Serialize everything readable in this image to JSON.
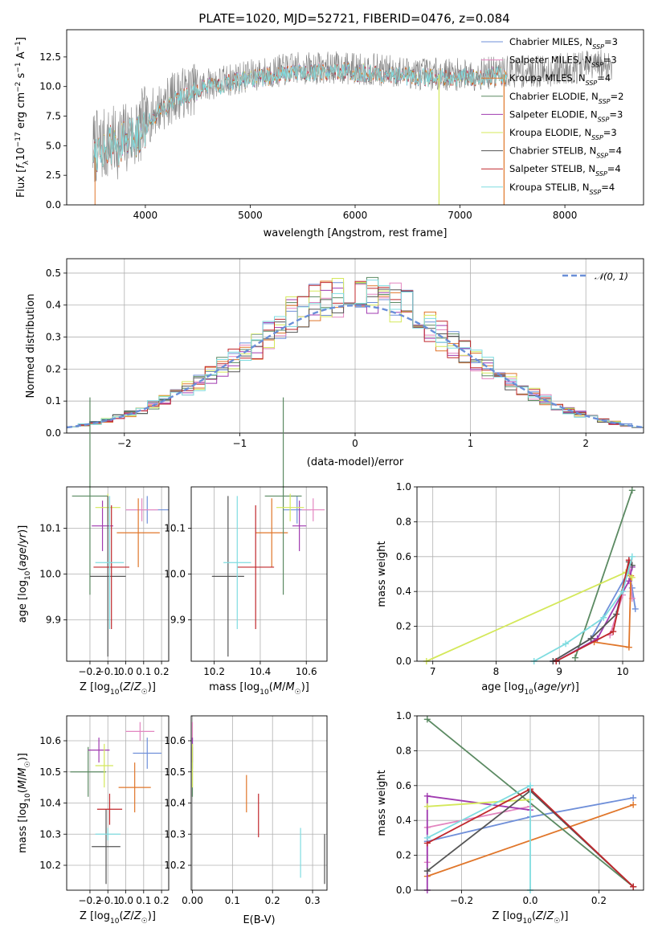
{
  "figure": {
    "title": "PLATE=1020, MJD=52721, FIBERID=0476, z=0.084"
  },
  "colors": {
    "data_spectrum": "#808080",
    "normal_curve": "#6a8fd8",
    "grid": "#b0b0b0"
  },
  "models": [
    {
      "name": "Chabrier MILES",
      "nssp": "3",
      "color": "#6f8fd9"
    },
    {
      "name": "Salpeter MILES",
      "nssp": "3",
      "color": "#e386c0"
    },
    {
      "name": "Kroupa MILES",
      "nssp": "4",
      "color": "#e0762a"
    },
    {
      "name": "Chabrier ELODIE",
      "nssp": "2",
      "color": "#5b8a62"
    },
    {
      "name": "Salpeter ELODIE",
      "nssp": "3",
      "color": "#a03bb0"
    },
    {
      "name": "Kroupa ELODIE",
      "nssp": "3",
      "color": "#d4e85a"
    },
    {
      "name": "Chabrier STELIB",
      "nssp": "4",
      "color": "#555555"
    },
    {
      "name": "Salpeter STELIB",
      "nssp": "4",
      "color": "#c0282d"
    },
    {
      "name": "Kroupa STELIB",
      "nssp": "4",
      "color": "#7fdce0"
    }
  ],
  "chart_data": [
    {
      "id": "spectrum",
      "type": "line",
      "title": "PLATE=1020, MJD=52721, FIBERID=0476, z=0.084",
      "xlabel": "wavelength [Angstrom, rest frame]",
      "ylabel": "Flux [f_λ 10^-17 erg cm^-2 s^-1 A^-1]",
      "xlim": [
        3250,
        8750
      ],
      "ylim": [
        0,
        14.8
      ],
      "xticks": [
        4000,
        5000,
        6000,
        7000,
        8000
      ],
      "yticks": [
        0.0,
        2.5,
        5.0,
        7.5,
        10.0,
        12.5
      ],
      "ytick_labels": [
        "0.0",
        "2.5",
        "5.0",
        "7.5",
        "10.0",
        "12.5"
      ],
      "continuum_points": {
        "x": [
          3500,
          3700,
          3900,
          4100,
          4300,
          4600,
          5000,
          5400,
          5800,
          6200,
          6600,
          7000,
          7400,
          7800,
          8200,
          8500
        ],
        "y": [
          4.8,
          5.2,
          6.0,
          8.0,
          9.3,
          10.2,
          10.9,
          11.5,
          11.6,
          11.4,
          11.1,
          11.0,
          11.2,
          11.3,
          11.7,
          11.9
        ]
      },
      "model_x_range": [
        3500,
        7450
      ],
      "data_x_range": [
        3500,
        8450
      ],
      "grid": false,
      "legend_position": "upper right"
    },
    {
      "id": "residuals",
      "type": "histogram",
      "xlabel": "(data-model)/error",
      "ylabel": "Normed distribution",
      "xlim": [
        -2.5,
        2.5
      ],
      "ylim": [
        0,
        0.545
      ],
      "xticks": [
        -2,
        -1,
        0,
        1,
        2
      ],
      "xtick_labels": [
        "−2",
        "−1",
        "0",
        "1",
        "2"
      ],
      "yticks": [
        0.0,
        0.1,
        0.2,
        0.3,
        0.4,
        0.5
      ],
      "ytick_labels": [
        "0.0",
        "0.1",
        "0.2",
        "0.3",
        "0.4",
        "0.5"
      ],
      "bin_width": 0.1,
      "curve_label": "𝒩(0, 1)",
      "grid": true,
      "legend_position": "upper right"
    },
    {
      "id": "age_vs_Z",
      "type": "errorbar",
      "xlabel": "Z [log10(Z/Z☉)]",
      "ylabel": "age [log10(age/yr)]",
      "xlim": [
        -0.33,
        0.24
      ],
      "ylim": [
        9.81,
        10.19
      ],
      "xticks": [
        -0.2,
        -0.1,
        0.0,
        0.1,
        0.2
      ],
      "xtick_labels": [
        "−0.2",
        "−0.1",
        "0.0",
        "0.1",
        "0.2"
      ],
      "yticks": [
        9.9,
        10.0,
        10.1
      ],
      "ytick_labels": [
        "9.9",
        "10.0",
        "10.1"
      ],
      "points": [
        {
          "model": 0,
          "x": 0.12,
          "y": 10.14,
          "xerr": 0.12,
          "yerr": 0.03
        },
        {
          "model": 1,
          "x": 0.09,
          "y": 10.14,
          "xerr": 0.09,
          "yerr": 0.025
        },
        {
          "model": 2,
          "x": 0.07,
          "y": 10.09,
          "xerr": 0.12,
          "yerr": 0.075
        },
        {
          "model": 3,
          "x": -0.2,
          "y": 10.17,
          "xerr": 0.1,
          "yerr": 0.215
        },
        {
          "model": 4,
          "x": -0.13,
          "y": 10.105,
          "xerr": 0.06,
          "yerr": 0.055
        },
        {
          "model": 5,
          "x": -0.1,
          "y": 10.145,
          "xerr": 0.07,
          "yerr": 0.03
        },
        {
          "model": 6,
          "x": -0.1,
          "y": 9.995,
          "xerr": 0.1,
          "yerr": 0.175
        },
        {
          "model": 7,
          "x": -0.08,
          "y": 10.015,
          "xerr": 0.1,
          "yerr": 0.135
        },
        {
          "model": 8,
          "x": -0.09,
          "y": 10.025,
          "xerr": 0.08,
          "yerr": 0.145
        }
      ],
      "grid": true
    },
    {
      "id": "age_vs_mass",
      "type": "errorbar",
      "xlabel": "mass [log10(M/M☉)]",
      "ylabel": "",
      "xlim": [
        10.1,
        10.69
      ],
      "ylim": [
        9.81,
        10.19
      ],
      "xticks": [
        10.2,
        10.4,
        10.6
      ],
      "xtick_labels": [
        "10.2",
        "10.4",
        "10.6"
      ],
      "yticks": [
        9.9,
        10.0,
        10.1
      ],
      "ytick_labels": [
        "9.9",
        "10.0",
        "10.1"
      ],
      "points": [
        {
          "model": 0,
          "x": 10.56,
          "y": 10.14,
          "xerr": 0.06,
          "yerr": 0.03
        },
        {
          "model": 1,
          "x": 10.63,
          "y": 10.14,
          "xerr": 0.05,
          "yerr": 0.025
        },
        {
          "model": 2,
          "x": 10.45,
          "y": 10.09,
          "xerr": 0.07,
          "yerr": 0.075
        },
        {
          "model": 3,
          "x": 10.5,
          "y": 10.17,
          "xerr": 0.08,
          "yerr": 0.215
        },
        {
          "model": 4,
          "x": 10.57,
          "y": 10.105,
          "xerr": 0.03,
          "yerr": 0.055
        },
        {
          "model": 5,
          "x": 10.53,
          "y": 10.145,
          "xerr": 0.06,
          "yerr": 0.03
        },
        {
          "model": 6,
          "x": 10.26,
          "y": 9.995,
          "xerr": 0.07,
          "yerr": 0.175
        },
        {
          "model": 7,
          "x": 10.38,
          "y": 10.015,
          "xerr": 0.08,
          "yerr": 0.135
        },
        {
          "model": 8,
          "x": 10.3,
          "y": 10.025,
          "xerr": 0.06,
          "yerr": 0.145
        }
      ],
      "grid": true
    },
    {
      "id": "massweight_vs_age",
      "type": "line",
      "xlabel": "age [log10(age/yr)]",
      "ylabel": "mass weight",
      "xlim": [
        6.75,
        10.33
      ],
      "ylim": [
        0,
        1.0
      ],
      "xticks": [
        7,
        8,
        9,
        10
      ],
      "xtick_labels": [
        "7",
        "8",
        "9",
        "10"
      ],
      "yticks": [
        0.0,
        0.2,
        0.4,
        0.6,
        0.8,
        1.0
      ],
      "ytick_labels": [
        "0.0",
        "0.2",
        "0.4",
        "0.6",
        "0.8",
        "1.0"
      ],
      "series": [
        {
          "model": 0,
          "x": [
            8.9,
            9.5,
            10.1,
            10.15,
            10.2
          ],
          "y": [
            0.0,
            0.13,
            0.52,
            0.42,
            0.3
          ]
        },
        {
          "model": 1,
          "x": [
            9.8,
            10.0,
            10.1,
            10.15
          ],
          "y": [
            0.15,
            0.38,
            0.58,
            0.36
          ]
        },
        {
          "model": 2,
          "x": [
            9.55,
            10.1,
            10.13
          ],
          "y": [
            0.11,
            0.08,
            0.49
          ]
        },
        {
          "model": 3,
          "x": [
            9.25,
            10.15
          ],
          "y": [
            0.02,
            0.98
          ]
        },
        {
          "model": 4,
          "x": [
            8.95,
            9.6,
            10.1,
            10.15
          ],
          "y": [
            0.0,
            0.13,
            0.46,
            0.54
          ]
        },
        {
          "model": 5,
          "x": [
            6.9,
            10.05,
            10.15
          ],
          "y": [
            0.0,
            0.51,
            0.48
          ]
        },
        {
          "model": 6,
          "x": [
            8.9,
            9.5,
            9.9,
            10.1,
            10.15
          ],
          "y": [
            0.0,
            0.13,
            0.27,
            0.57,
            0.55
          ]
        },
        {
          "model": 7,
          "x": [
            8.95,
            9.85,
            10.1
          ],
          "y": [
            0.0,
            0.17,
            0.58
          ]
        },
        {
          "model": 8,
          "x": [
            8.6,
            9.1,
            9.7,
            10.0,
            10.15
          ],
          "y": [
            0.0,
            0.1,
            0.25,
            0.4,
            0.6
          ]
        }
      ],
      "grid": true
    },
    {
      "id": "mass_vs_Z",
      "type": "errorbar",
      "xlabel": "Z [log10(Z/Z☉)]",
      "ylabel": "mass [log10(M/M☉)]",
      "xlim": [
        -0.33,
        0.24
      ],
      "ylim": [
        10.12,
        10.68
      ],
      "xticks": [
        -0.2,
        -0.1,
        0.0,
        0.1,
        0.2
      ],
      "xtick_labels": [
        "−0.2",
        "−0.1",
        "0.0",
        "0.1",
        "0.2"
      ],
      "yticks": [
        10.2,
        10.3,
        10.4,
        10.5,
        10.6
      ],
      "ytick_labels": [
        "10.2",
        "10.3",
        "10.4",
        "10.5",
        "10.6"
      ],
      "points": [
        {
          "model": 0,
          "x": 0.12,
          "y": 10.56,
          "xerr": 0.08,
          "yerr": 0.05
        },
        {
          "model": 1,
          "x": 0.08,
          "y": 10.63,
          "xerr": 0.08,
          "yerr": 0.03
        },
        {
          "model": 2,
          "x": 0.05,
          "y": 10.45,
          "xerr": 0.09,
          "yerr": 0.08
        },
        {
          "model": 3,
          "x": -0.21,
          "y": 10.5,
          "xerr": 0.1,
          "yerr": 0.08
        },
        {
          "model": 4,
          "x": -0.15,
          "y": 10.57,
          "xerr": 0.06,
          "yerr": 0.04
        },
        {
          "model": 5,
          "x": -0.12,
          "y": 10.52,
          "xerr": 0.05,
          "yerr": 0.07
        },
        {
          "model": 6,
          "x": -0.11,
          "y": 10.26,
          "xerr": 0.08,
          "yerr": 0.12
        },
        {
          "model": 7,
          "x": -0.09,
          "y": 10.38,
          "xerr": 0.07,
          "yerr": 0.05
        },
        {
          "model": 8,
          "x": -0.1,
          "y": 10.3,
          "xerr": 0.07,
          "yerr": 0.02
        }
      ],
      "grid": true
    },
    {
      "id": "mass_vs_ebv",
      "type": "errorbar",
      "xlabel": "E(B-V)",
      "ylabel": "",
      "xlim": [
        -0.003,
        0.336
      ],
      "ylim": [
        10.12,
        10.68
      ],
      "xticks": [
        0.0,
        0.1,
        0.2,
        0.3
      ],
      "xtick_labels": [
        "0.00",
        "0.1",
        "0.2",
        "0.3"
      ],
      "yticks": [
        10.2,
        10.3,
        10.4,
        10.5,
        10.6
      ],
      "ytick_labels": [
        "10.2",
        "10.3",
        "10.4",
        "10.5",
        "10.6"
      ],
      "points": [
        {
          "model": 0,
          "x": 0.0,
          "y": 10.56,
          "xerr": 0.0,
          "yerr": 0.05
        },
        {
          "model": 1,
          "x": 0.0,
          "y": 10.63,
          "xerr": 0.0,
          "yerr": 0.03
        },
        {
          "model": 2,
          "x": 0.135,
          "y": 10.43,
          "xerr": 0.0,
          "yerr": 0.06
        },
        {
          "model": 3,
          "x": 0.0,
          "y": 10.5,
          "xerr": 0.0,
          "yerr": 0.08
        },
        {
          "model": 4,
          "x": 0.0,
          "y": 10.57,
          "xerr": 0.0,
          "yerr": 0.04
        },
        {
          "model": 5,
          "x": 0.0,
          "y": 10.52,
          "xerr": 0.0,
          "yerr": 0.07
        },
        {
          "model": 6,
          "x": 0.33,
          "y": 10.22,
          "xerr": 0.0,
          "yerr": 0.08
        },
        {
          "model": 7,
          "x": 0.165,
          "y": 10.36,
          "xerr": 0.0,
          "yerr": 0.07
        },
        {
          "model": 8,
          "x": 0.27,
          "y": 10.24,
          "xerr": 0.0,
          "yerr": 0.08
        }
      ],
      "grid": true
    },
    {
      "id": "massweight_vs_Z",
      "type": "line",
      "xlabel": "Z [log10(Z/Z☉)]",
      "ylabel": "mass weight",
      "xlim": [
        -0.33,
        0.33
      ],
      "ylim": [
        0,
        1.0
      ],
      "xticks": [
        -0.2,
        0.0,
        0.2
      ],
      "xtick_labels": [
        "−0.2",
        "0.0",
        "0.2"
      ],
      "yticks": [
        0.0,
        0.2,
        0.4,
        0.6,
        0.8,
        1.0
      ],
      "ytick_labels": [
        "0.0",
        "0.2",
        "0.4",
        "0.6",
        "0.8",
        "1.0"
      ],
      "series": [
        {
          "model": 0,
          "x": [
            -0.3,
            0.0,
            0.3
          ],
          "y": [
            0.28,
            0.42,
            0.53
          ]
        },
        {
          "model": 1,
          "x": [
            -0.3,
            -0.3,
            0.0
          ],
          "y": [
            0.16,
            0.36,
            0.48
          ]
        },
        {
          "model": 2,
          "x": [
            -0.3,
            0.3
          ],
          "y": [
            0.08,
            0.49
          ]
        },
        {
          "model": 3,
          "x": [
            -0.3,
            0.3
          ],
          "y": [
            0.98,
            0.02
          ]
        },
        {
          "model": 4,
          "x": [
            -0.3,
            -0.3,
            0.0
          ],
          "y": [
            0.0,
            0.54,
            0.46
          ]
        },
        {
          "model": 5,
          "x": [
            -0.3,
            0.0
          ],
          "y": [
            0.48,
            0.52
          ]
        },
        {
          "model": 6,
          "x": [
            -0.3,
            0.0,
            0.3
          ],
          "y": [
            0.11,
            0.57,
            0.02
          ]
        },
        {
          "model": 7,
          "x": [
            -0.3,
            0.0,
            0.3
          ],
          "y": [
            0.27,
            0.58,
            0.02
          ]
        },
        {
          "model": 8,
          "x": [
            -0.3,
            0.0,
            0.0
          ],
          "y": [
            0.3,
            0.6,
            0.0
          ]
        }
      ],
      "grid": true
    }
  ]
}
